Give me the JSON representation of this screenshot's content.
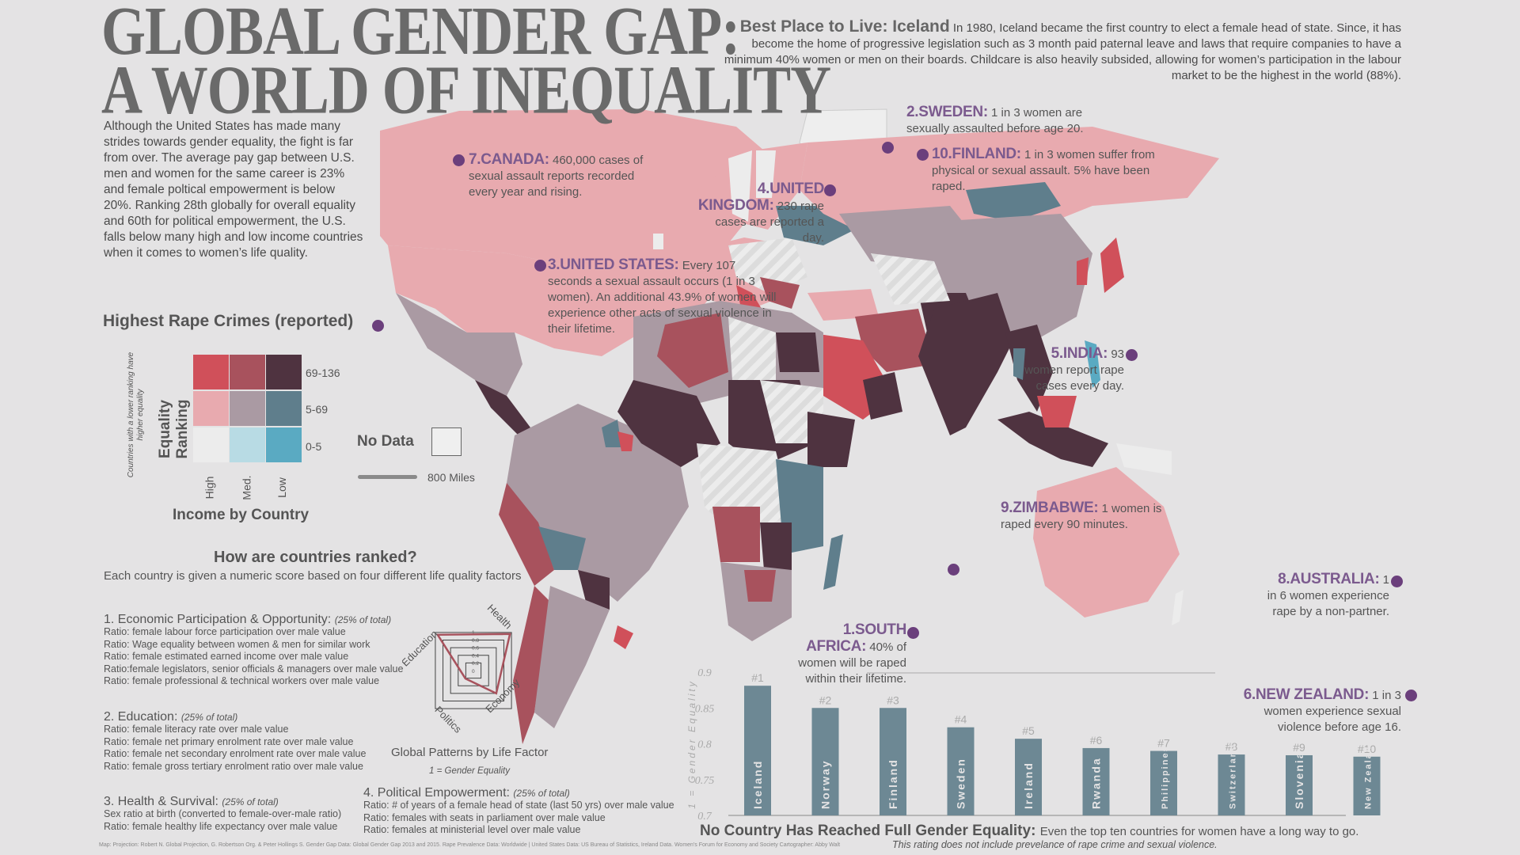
{
  "title": {
    "line1": "GLOBAL GENDER GAP:",
    "line2": "A WORLD OF INEQUALITY"
  },
  "intro": "Although the United States has made many strides towards gender equality, the fight is far from over.  The average pay gap between U.S. men and women for the same career is 23% and female poltical empowerment is below 20%.  Ranking 28th globally for overall  equality and 60th for political empowerment, the U.S. falls below many high and low income countries when it comes to women’s life quality.",
  "iceland": {
    "heading": "Best Place to Live: Iceland",
    "text": "In 1980, Iceland became the first country to elect a female head of state.  Since, it has become the  home of  progressive legislation such as 3 month paid paternal leave and laws that require companies to have a minimum 40% women or men on their boards.  Childcare is also heavily subsided, allowing for women’s participation in the labour market to be the highest in the world (88%)."
  },
  "callouts": {
    "canada": {
      "name": "7.CANADA:",
      "text": "460,000 cases of sexual assault reports recorded every year and rising."
    },
    "usa": {
      "name": "3.UNITED STATES:",
      "text": "Every 107 seconds a sexual assault occurs (1 in 3 women). An additional 43.9% of women will experience other acts of sexual violence in their lifetime."
    },
    "sweden": {
      "name": "2.SWEDEN:",
      "text": "1 in 3 women are sexually assaulted before age 20."
    },
    "finland": {
      "name": "10.FINLAND:",
      "text": "1 in 3 women suffer from physical or sexual assault.  5% have been raped."
    },
    "uk": {
      "name": "4.UNITED KINGDOM:",
      "text": "230 rape cases are reported a day."
    },
    "india": {
      "name": "5.INDIA:",
      "text": "93 women report rape cases every day."
    },
    "zimbabwe": {
      "name": "9.ZIMBABWE:",
      "text": "1 women is raped every 90 minutes."
    },
    "south_africa": {
      "name": "1.SOUTH AFRICA:",
      "text": "40% of women will be raped within their lifetime."
    },
    "australia": {
      "name": "8.AUSTRALIA:",
      "text": "1 in 6 women experience rape by a non-partner."
    },
    "new_zealand": {
      "name": "6.NEW ZEALAND:",
      "text": "1 in 3 women experience sexual violence before age 16."
    }
  },
  "legend": {
    "title": "Highest Rape Crimes (reported)",
    "y_axis": "Equality Ranking",
    "y_note": "Countries with a lower ranking have higher equality",
    "x_axis": "Income by Country",
    "rows": [
      "69-136",
      "5-69",
      "0-5"
    ],
    "cols": [
      "High",
      "Med.",
      "Low"
    ],
    "colors": [
      [
        "#d0505a",
        "#a8525d",
        "#4f3340"
      ],
      [
        "#e8aaaf",
        "#aa9aa3",
        "#5f7e8c"
      ],
      [
        "#ececec",
        "#b8dbe4",
        "#5aaac2"
      ]
    ],
    "no_data": "No Data",
    "scale": "800 Miles"
  },
  "ranking": {
    "heading": "How are countries ranked?",
    "sub": "Each country is given a numeric score based on four different life quality factors",
    "factors": [
      {
        "title": "1. Economic Participation & Opportunity:",
        "share": "(25% of total)",
        "ratios": [
          "Ratio: female labour force participation over male value",
          "Ratio: Wage equality between women & men for similar work",
          "Ratio: female estimated earned income over male value",
          "Ratio:female legislators, senior officials & managers over male value",
          "Ratio: female professional & technical workers over male value"
        ]
      },
      {
        "title": "2. Education:",
        "share": "(25% of total)",
        "ratios": [
          "Ratio: female literacy rate over male value",
          "Ratio: female net primary enrolment rate over male value",
          "Ratio: female net secondary enrolment rate over male value",
          "Ratio: female gross tertiary enrolment ratio over male value"
        ]
      },
      {
        "title": "3. Health & Survival:",
        "share": "(25% of total)",
        "ratios": [
          "Sex ratio at birth (converted to female-over-male ratio)",
          "Ratio: female healthy life expectancy over male value"
        ]
      },
      {
        "title": "4. Political Empowerment:",
        "share": "(25% of total)",
        "ratios": [
          "Ratio: # of years of a female head of state (last 50 yrs) over male value",
          "Ratio: females with seats in parliament over male value",
          "Ratio: females at ministerial level over male value"
        ]
      }
    ]
  },
  "radar": {
    "title": "Global Patterns by Life Factor",
    "note": "1 = Gender Equality",
    "axes": [
      "Health",
      "Economy",
      "Politics",
      "Education"
    ],
    "ticks": [
      "1",
      "0.8",
      "0.6",
      "0.4",
      "0.2",
      "0"
    ],
    "values": [
      0.96,
      0.6,
      0.21,
      0.94
    ]
  },
  "chart_data": {
    "type": "bar",
    "title": "No Country Has Reached Full Gender Equality:",
    "subtitle": "Even the top ten countries for women have a long way to go.",
    "note": "This rating does not include prevelance of rape crime and sexual violence.",
    "ylabel": "1 = Gender Equality",
    "ylim": [
      0.7,
      0.9
    ],
    "yticks": [
      "0.9",
      "0.85",
      "0.8",
      "0.75",
      "0.7"
    ],
    "ytick_values": [
      0.9,
      0.85,
      0.8,
      0.75,
      0.7
    ],
    "categories": [
      "Iceland",
      "Norway",
      "Finland",
      "Sweden",
      "Ireland",
      "Rwanda",
      "Philippines",
      "Switzerland",
      "Slovenia",
      "New Zealand"
    ],
    "ranks": [
      "#1",
      "#2",
      "#3",
      "#4",
      "#5",
      "#6",
      "#7",
      "#8",
      "#9",
      "#10"
    ],
    "values": [
      0.881,
      0.85,
      0.85,
      0.823,
      0.807,
      0.794,
      0.79,
      0.785,
      0.784,
      0.782
    ],
    "bar_color": "#6d8894"
  },
  "sources": "Map: Projection: Robert N. Global Projection, G. Robertson Org. & Peter Hollings S.   Gender Gap Data: Global Gender Gap 2013 and 2015.  Rape Prevalence Data: Worldwide  |  United States Data: US Bureau of Statistics, Ireland Data.  Women's Forum for Economy and Society Cartographer: Abby Walt"
}
